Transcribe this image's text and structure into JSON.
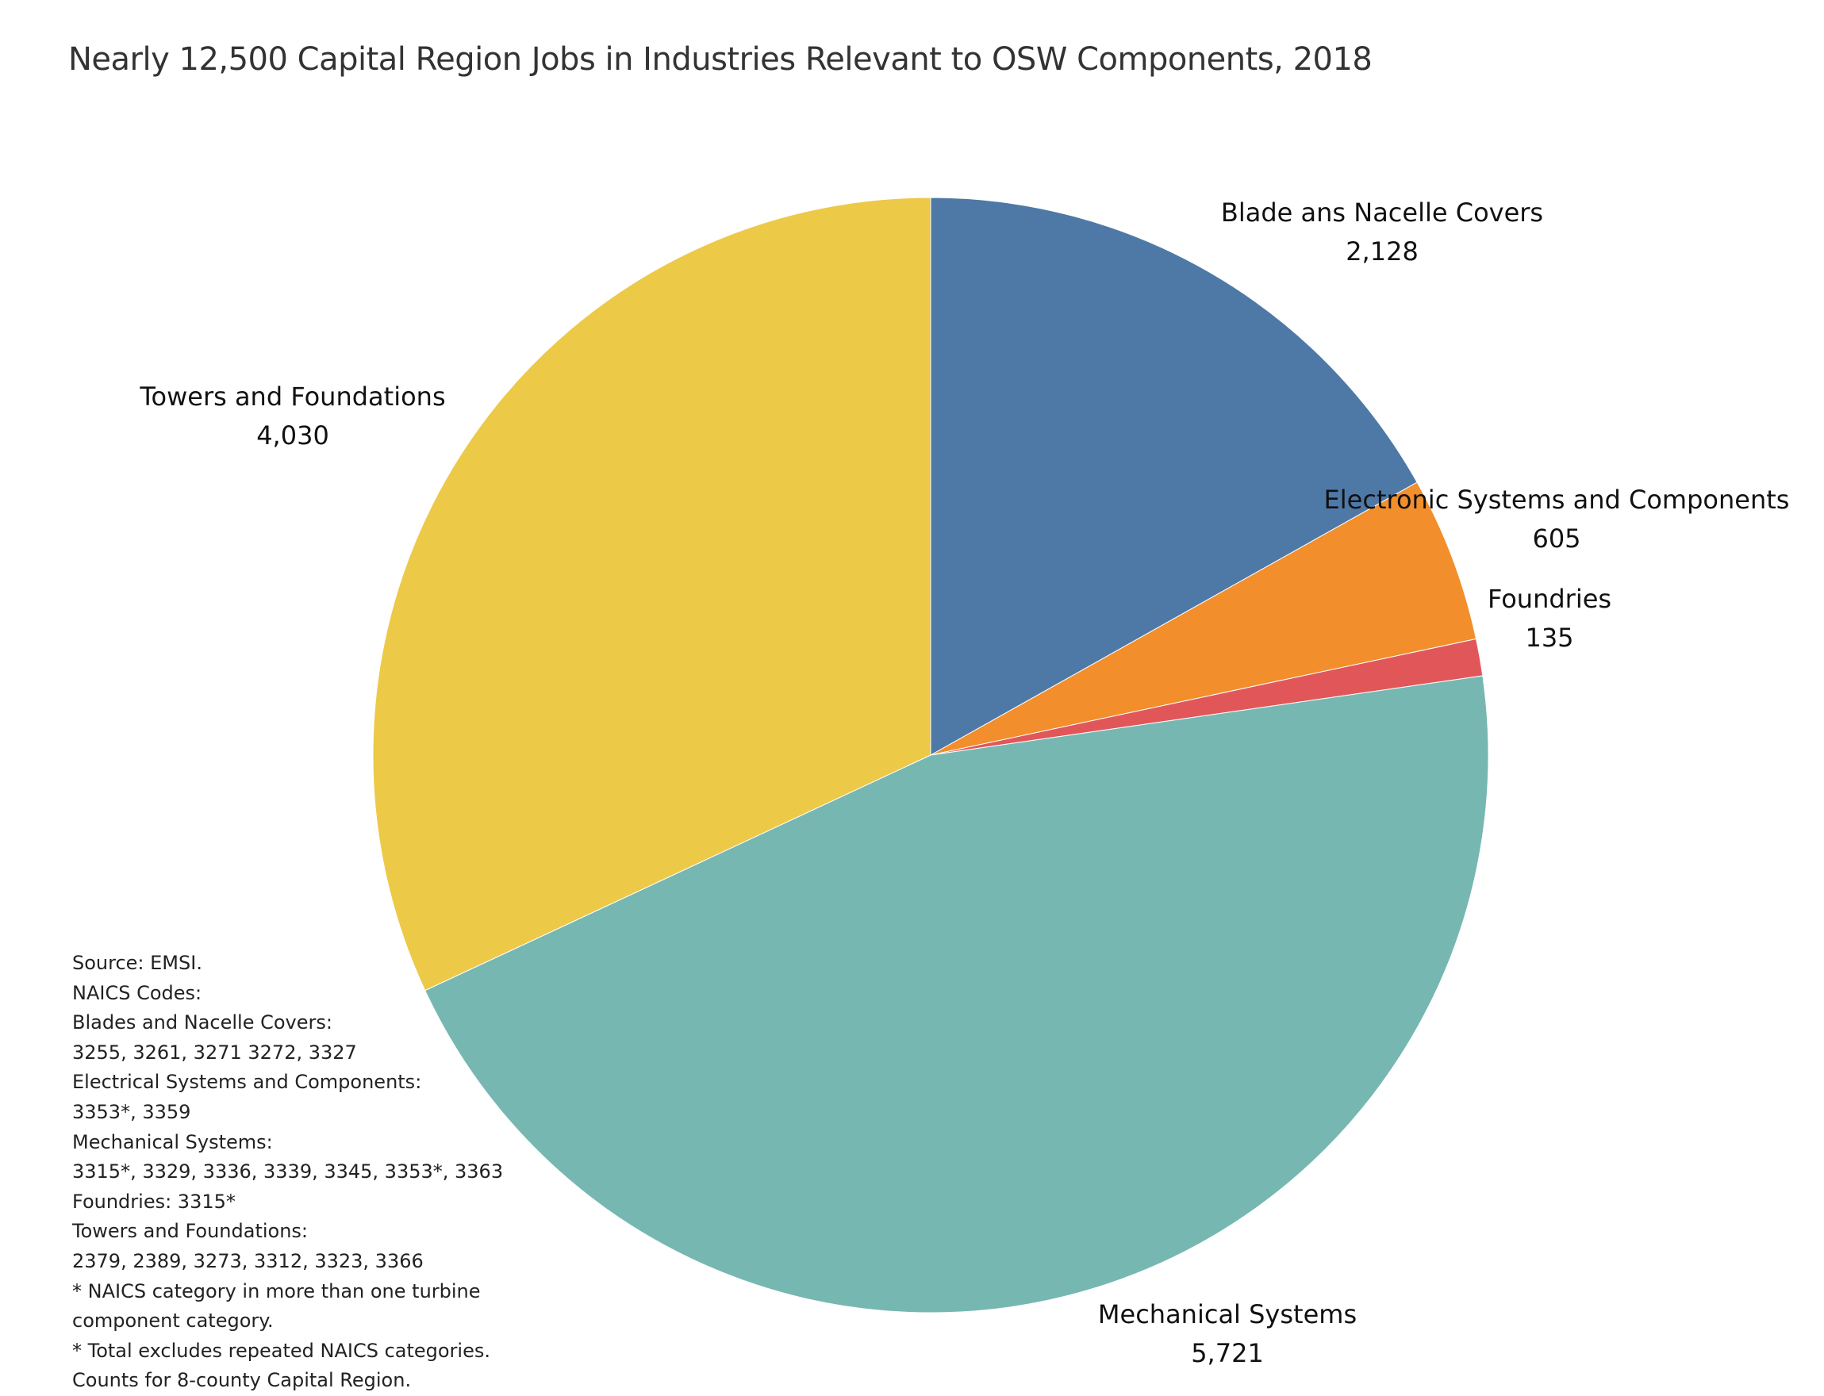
{
  "chart_data": {
    "type": "pie",
    "title": "Nearly  12,500 Capital Region Jobs in Industries Relevant to OSW Components, 2018",
    "start": "top",
    "direction": "clockwise",
    "slices": [
      {
        "label": "Blade ans Nacelle Covers",
        "value": 2128,
        "value_label": "2,128",
        "color": "#4e79a7"
      },
      {
        "label": "Electronic Systems and Components",
        "value": 605,
        "value_label": "605",
        "color": "#f28e2b"
      },
      {
        "label": "Foundries",
        "value": 135,
        "value_label": "135",
        "color": "#e15759"
      },
      {
        "label": "Mechanical Systems",
        "value": 5721,
        "value_label": "5,721",
        "color": "#76b7b2"
      },
      {
        "label": "Towers and Foundations",
        "value": 4030,
        "value_label": "4,030",
        "color": "#edc948"
      }
    ]
  },
  "notes": [
    "Source: EMSI.",
    "NAICS Codes:",
    "Blades and Nacelle Covers:",
    "3255, 3261, 3271 3272, 3327",
    "Electrical Systems and Components:",
    "3353*, 3359",
    "Mechanical Systems:",
    "3315*, 3329, 3336, 3339, 3345, 3353*, 3363",
    "Foundries: 3315*",
    "Towers and Foundations:",
    "2379, 2389, 3273, 3312, 3323, 3366",
    "* NAICS category in more than one turbine",
    "component category.",
    "* Total excludes repeated NAICS categories.",
    "Counts for 8-county Capital Region."
  ]
}
